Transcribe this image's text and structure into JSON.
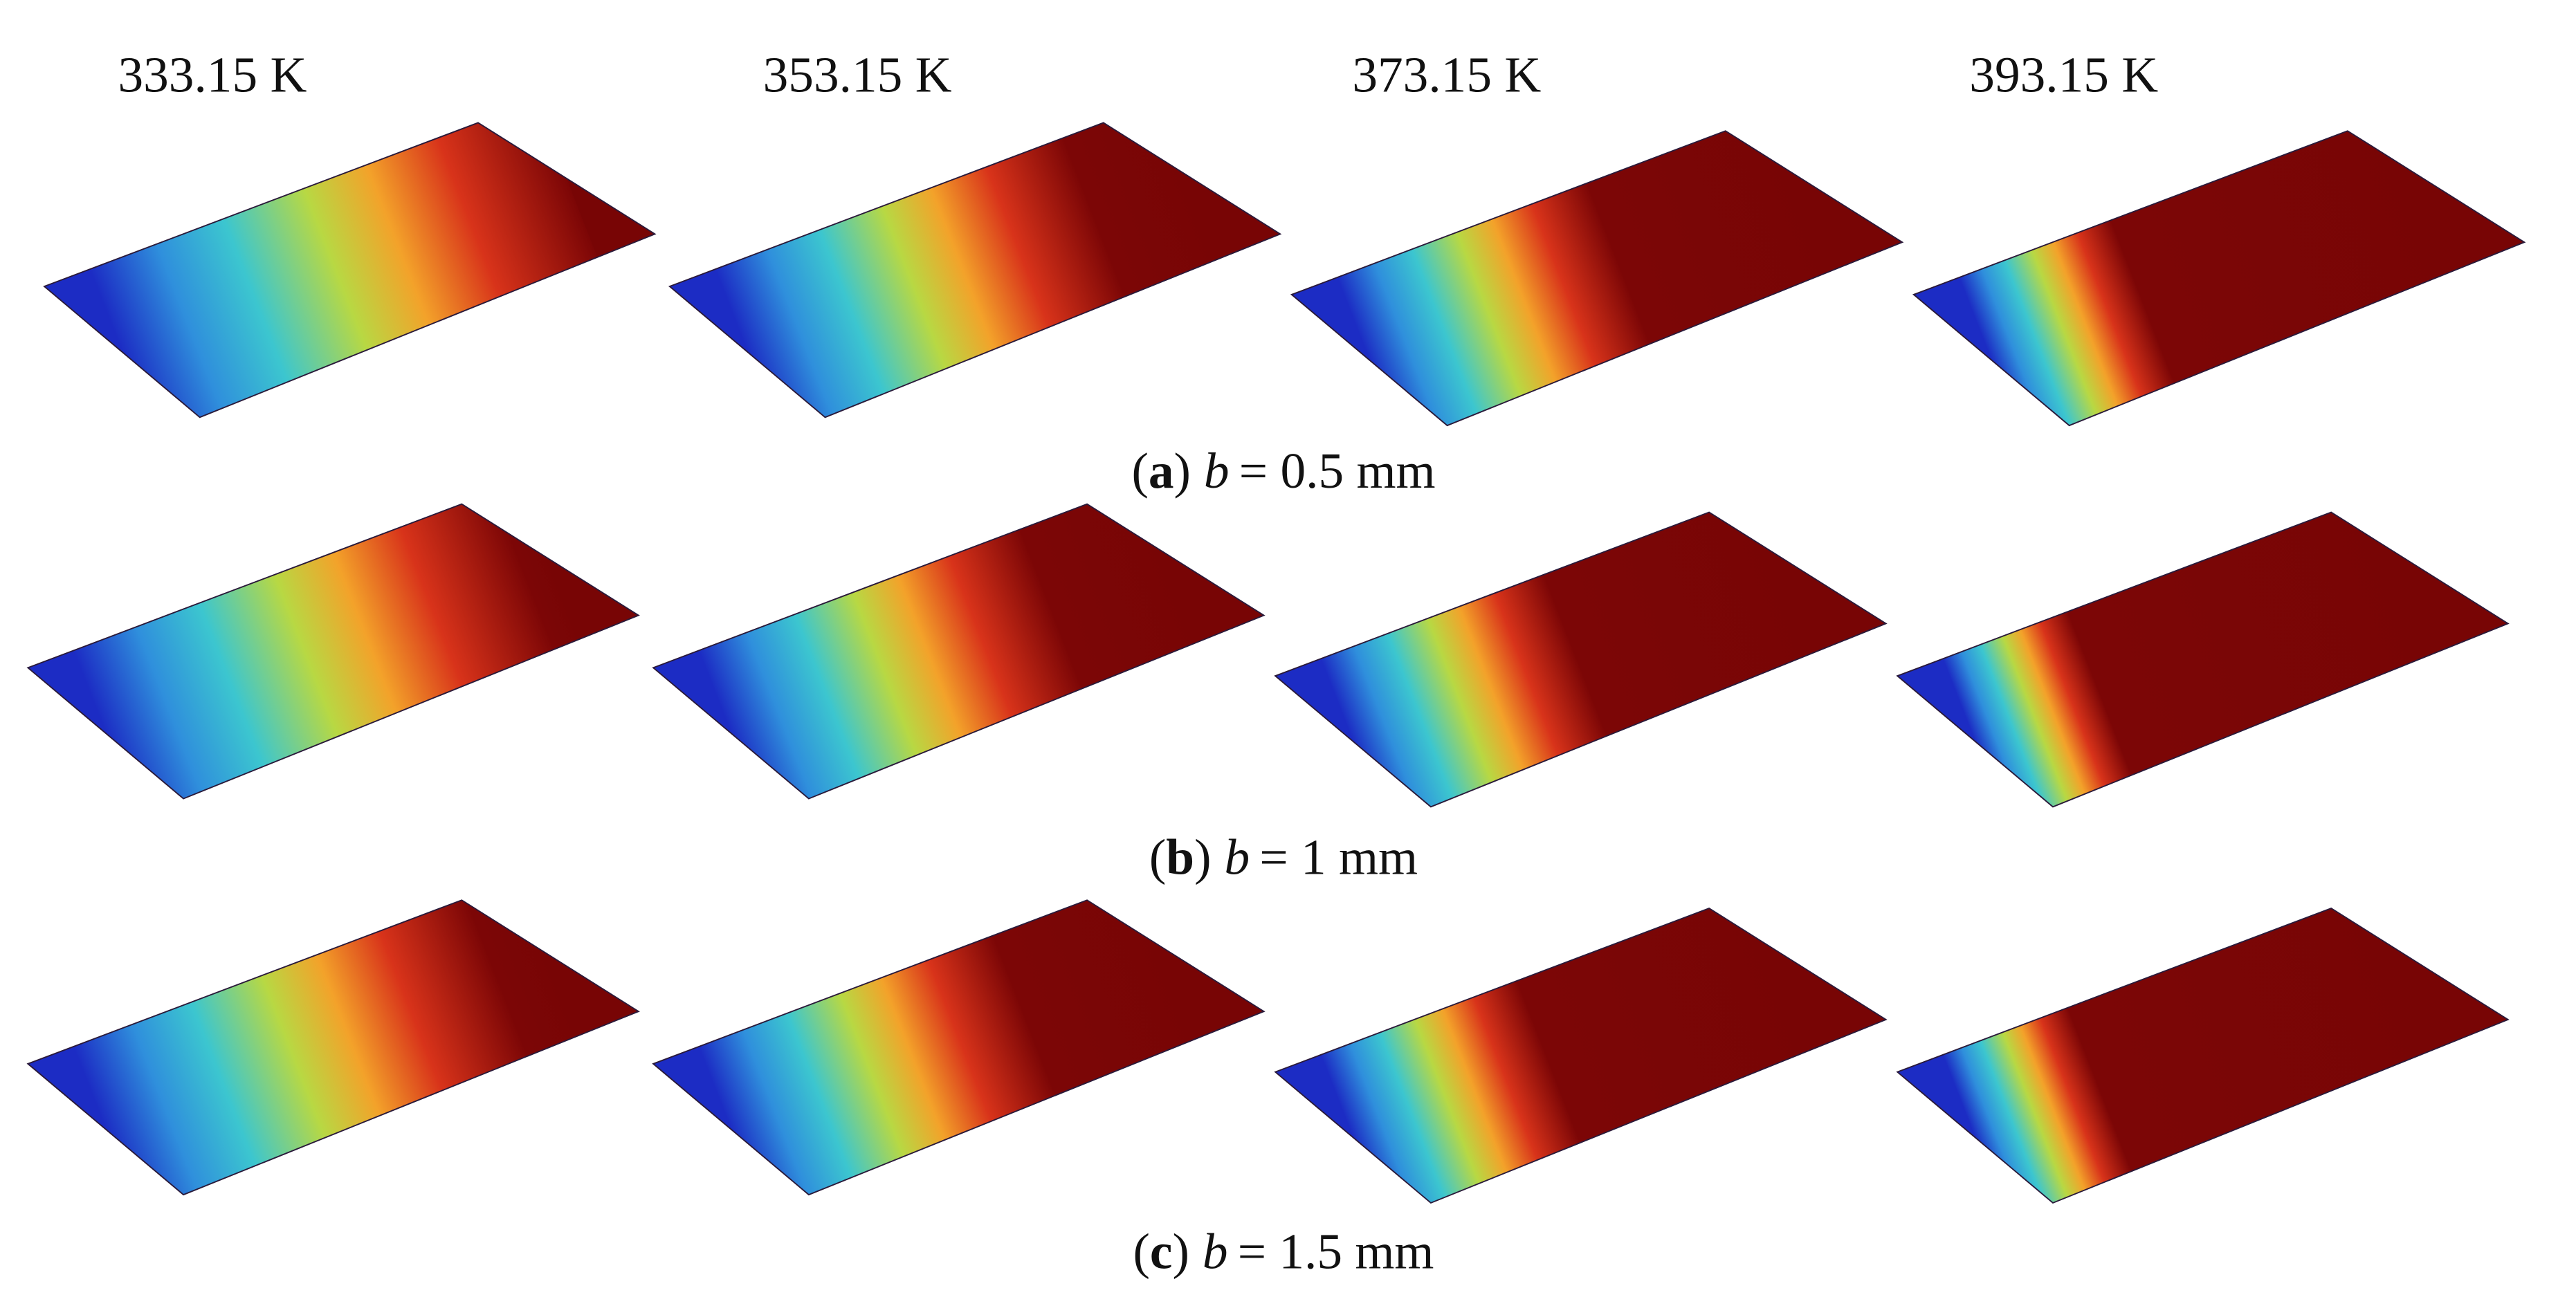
{
  "column_headers": [
    "333.15 K",
    "353.15 K",
    "373.15 K",
    "393.15 K"
  ],
  "rows": [
    {
      "caption": {
        "open": "(",
        "letter": "a",
        "close": ")",
        "variable": "b",
        "rest": "= 0.5 mm"
      }
    },
    {
      "caption": {
        "open": "(",
        "letter": "b",
        "close": ")",
        "variable": "b",
        "rest": "= 1 mm"
      }
    },
    {
      "caption": {
        "open": "(",
        "letter": "c",
        "close": ")",
        "variable": "b",
        "rest": "= 1.5 mm"
      }
    }
  ]
}
